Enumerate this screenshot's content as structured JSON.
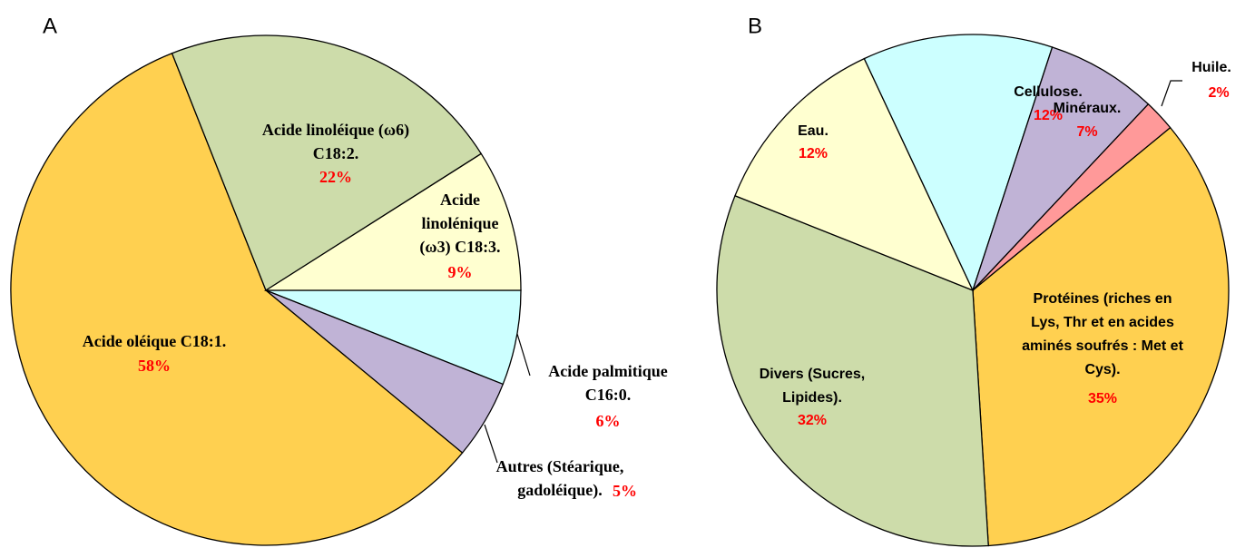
{
  "chart_data": [
    {
      "type": "pie",
      "title": "A",
      "categories": [
        "Acide palmitique\nC16:0.",
        "Autres (Stéarique,\ngadoléique).",
        "Acide oléique C18:1.",
        "Acide linoléique (ω6)\nC18:2.",
        "Acide\nlinolénique\n(ω3) C18:3."
      ],
      "values": [
        6,
        5,
        58,
        22,
        9
      ],
      "value_labels": [
        "6%",
        "5%",
        "58%",
        "22%",
        "9%"
      ],
      "colors": [
        "#ccffff",
        "#c0b3d6",
        "#ffd050",
        "#cddcaa",
        "#ffffd0"
      ]
    },
    {
      "type": "pie",
      "title": "B",
      "categories": [
        "Protéines (riches en\nLys, Thr et en acides\naminés soufrés : Met et\nCys).",
        "Divers (Sucres,\nLipides).",
        "Eau.",
        "Cellulose.",
        "Minéraux.",
        "Huile."
      ],
      "values": [
        35,
        32,
        12,
        12,
        7,
        2
      ],
      "value_labels": [
        "35%",
        "32%",
        "12%",
        "12%",
        "7%",
        "2%"
      ],
      "colors": [
        "#ffd050",
        "#cddcaa",
        "#ffffd0",
        "#ccffff",
        "#c0b3d6",
        "#ff9999"
      ]
    }
  ]
}
